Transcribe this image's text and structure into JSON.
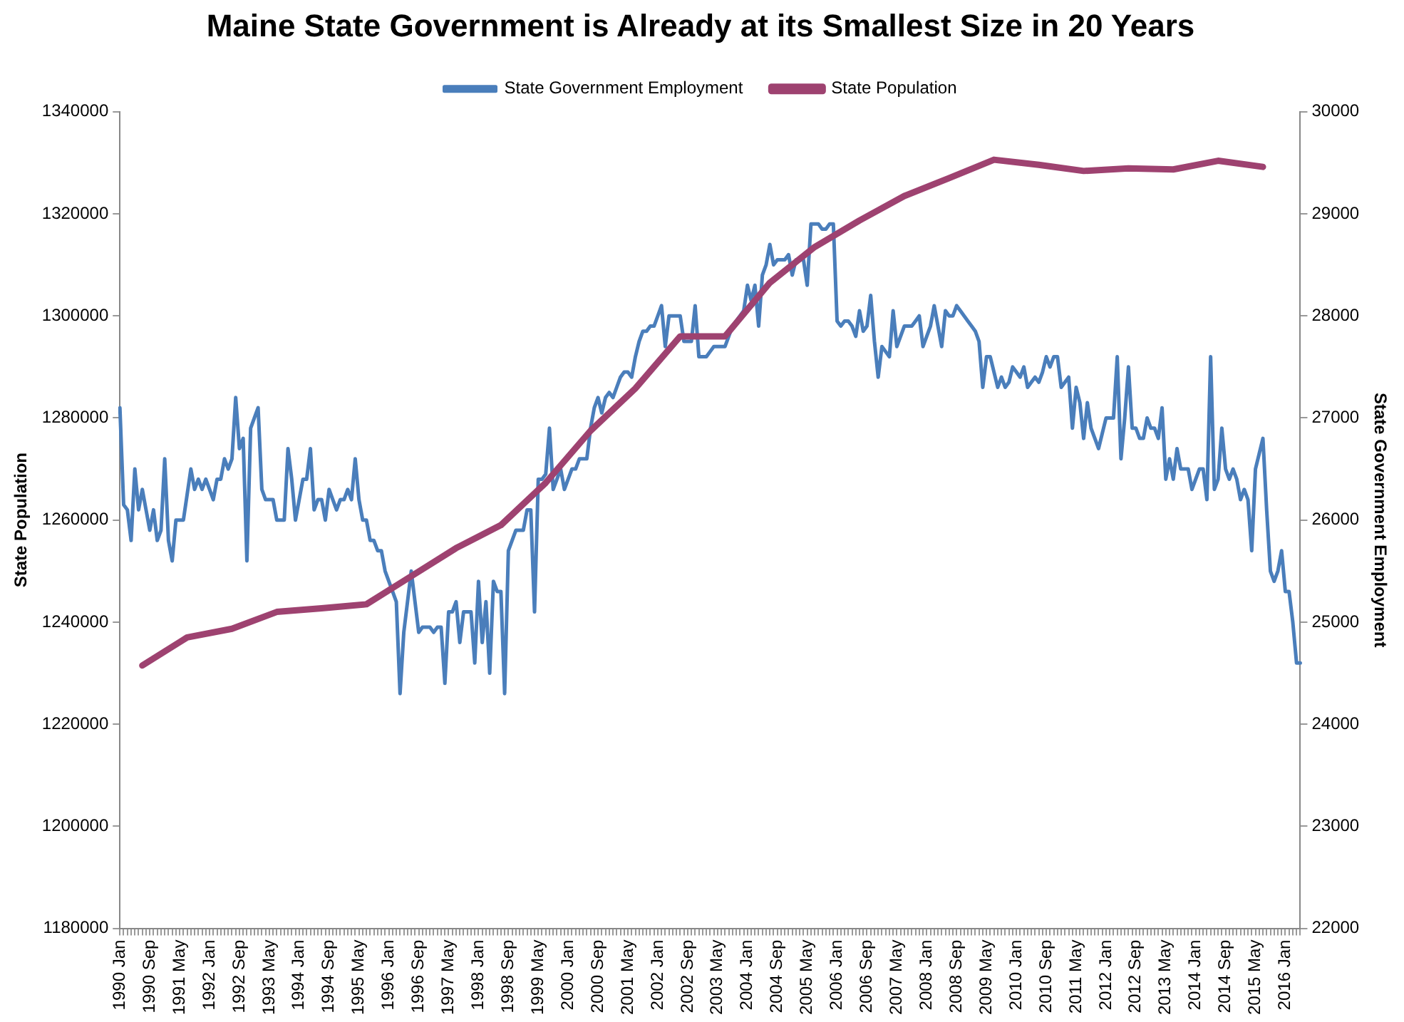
{
  "chart_data": {
    "type": "line",
    "title": "Maine State Government is Already at its Smallest Size in 20 Years",
    "ylabel": "State Population",
    "y2label": "State Government Employment",
    "categories": [
      "1990 Jan",
      null,
      null,
      null,
      null,
      null,
      null,
      null,
      "1990 Sep",
      null,
      null,
      null,
      null,
      null,
      null,
      null,
      "1991 May",
      null,
      null,
      null,
      null,
      null,
      null,
      null,
      "1992 Jan",
      null,
      null,
      null,
      null,
      null,
      null,
      null,
      "1992 Sep",
      null,
      null,
      null,
      null,
      null,
      null,
      null,
      "1993 May",
      null,
      null,
      null,
      null,
      null,
      null,
      null,
      "1994 Jan",
      null,
      null,
      null,
      null,
      null,
      null,
      null,
      "1994 Sep",
      null,
      null,
      null,
      null,
      null,
      null,
      null,
      "1995 May",
      null,
      null,
      null,
      null,
      null,
      null,
      null,
      "1996 Jan",
      null,
      null,
      null,
      null,
      null,
      null,
      null,
      "1996 Sep",
      null,
      null,
      null,
      null,
      null,
      null,
      null,
      "1997 May",
      null,
      null,
      null,
      null,
      null,
      null,
      null,
      "1998 Jan",
      null,
      null,
      null,
      null,
      null,
      null,
      null,
      "1998 Sep",
      null,
      null,
      null,
      null,
      null,
      null,
      null,
      "1999 May",
      null,
      null,
      null,
      null,
      null,
      null,
      null,
      "2000 Jan",
      null,
      null,
      null,
      null,
      null,
      null,
      null,
      "2000 Sep",
      null,
      null,
      null,
      null,
      null,
      null,
      null,
      "2001 May",
      null,
      null,
      null,
      null,
      null,
      null,
      null,
      "2002 Jan",
      null,
      null,
      null,
      null,
      null,
      null,
      null,
      "2002 Sep",
      null,
      null,
      null,
      null,
      null,
      null,
      null,
      "2003 May",
      null,
      null,
      null,
      null,
      null,
      null,
      null,
      "2004 Jan",
      null,
      null,
      null,
      null,
      null,
      null,
      null,
      "2004 Sep",
      null,
      null,
      null,
      null,
      null,
      null,
      null,
      "2005 May",
      null,
      null,
      null,
      null,
      null,
      null,
      null,
      "2006 Jan",
      null,
      null,
      null,
      null,
      null,
      null,
      null,
      "2006 Sep",
      null,
      null,
      null,
      null,
      null,
      null,
      null,
      "2007 May",
      null,
      null,
      null,
      null,
      null,
      null,
      null,
      "2008 Jan",
      null,
      null,
      null,
      null,
      null,
      null,
      null,
      "2008 Sep",
      null,
      null,
      null,
      null,
      null,
      null,
      null,
      "2009 May",
      null,
      null,
      null,
      null,
      null,
      null,
      null,
      "2010 Jan",
      null,
      null,
      null,
      null,
      null,
      null,
      null,
      "2010 Sep",
      null,
      null,
      null,
      null,
      null,
      null,
      null,
      "2011 May",
      null,
      null,
      null,
      null,
      null,
      null,
      null,
      "2012 Jan",
      null,
      null,
      null,
      null,
      null,
      null,
      null,
      "2012 Sep",
      null,
      null,
      null,
      null,
      null,
      null,
      null,
      "2013 May",
      null,
      null,
      null,
      null,
      null,
      null,
      null,
      "2014 Jan",
      null,
      null,
      null,
      null,
      null,
      null,
      null,
      "2014 Sep",
      null,
      null,
      null,
      null,
      null,
      null,
      null,
      "2015 May",
      null,
      null,
      null,
      null,
      null,
      null,
      null,
      "2016 Jan",
      null,
      null,
      null,
      null
    ],
    "series": [
      {
        "name": "State Government Employment",
        "color": "#4a7ebb",
        "axis": "y2",
        "values": [
          27100,
          26150,
          26100,
          25800,
          26500,
          26100,
          26300,
          26100,
          25900,
          26100,
          25800,
          25900,
          26600,
          25800,
          25600,
          26000,
          26000,
          26000,
          26250,
          26500,
          26300,
          26400,
          26300,
          26400,
          26300,
          26200,
          26400,
          26400,
          26600,
          26500,
          26600,
          27200,
          26700,
          26800,
          25600,
          26900,
          27000,
          27100,
          26300,
          26200,
          26200,
          26200,
          26000,
          26000,
          26000,
          26700,
          26400,
          26000,
          26200,
          26400,
          26400,
          26700,
          26100,
          26200,
          26200,
          26000,
          26300,
          26200,
          26100,
          26200,
          26200,
          26300,
          26200,
          26600,
          26200,
          26000,
          26000,
          25800,
          25800,
          25700,
          25700,
          25500,
          25400,
          25300,
          25200,
          24300,
          24900,
          25200,
          25500,
          25200,
          24900,
          24950,
          24950,
          24950,
          24900,
          24950,
          24950,
          24400,
          25100,
          25100,
          25200,
          24800,
          25100,
          25100,
          25100,
          24600,
          25400,
          24800,
          25200,
          24500,
          25400,
          25300,
          25300,
          24300,
          25700,
          25800,
          25900,
          25900,
          25900,
          26100,
          26100,
          25100,
          26400,
          26400,
          26450,
          26900,
          26300,
          26400,
          26500,
          26300,
          26400,
          26500,
          26500,
          26600,
          26600,
          26600,
          26900,
          27100,
          27200,
          27050,
          27200,
          27250,
          27200,
          27300,
          27400,
          27450,
          27450,
          27400,
          27600,
          27750,
          27850,
          27850,
          27900,
          27900,
          28000,
          28100,
          27700,
          28000,
          28000,
          28000,
          28000,
          27750,
          27750,
          27750,
          28100,
          27600,
          27600,
          27600,
          27650,
          27700,
          27700,
          27700,
          27700,
          27800,
          27900,
          27950,
          28000,
          28050,
          28300,
          28150,
          28300,
          27900,
          28400,
          28500,
          28700,
          28500,
          28550,
          28550,
          28550,
          28600,
          28400,
          28550,
          28550,
          28550,
          28300,
          28900,
          28900,
          28900,
          28850,
          28850,
          28900,
          28900,
          27950,
          27900,
          27950,
          27950,
          27900,
          27800,
          28050,
          27850,
          27900,
          28200,
          27750,
          27400,
          27700,
          27650,
          27600,
          28050,
          27700,
          27800,
          27900,
          27900,
          27900,
          27950,
          28000,
          27700,
          27800,
          27900,
          28100,
          27900,
          27700,
          28050,
          28000,
          28000,
          28100,
          28050,
          28000,
          27950,
          27900,
          27850,
          27750,
          27300,
          27600,
          27600,
          27450,
          27300,
          27400,
          27300,
          27350,
          27500,
          27450,
          27400,
          27500,
          27300,
          27350,
          27400,
          27350,
          27450,
          27600,
          27500,
          27600,
          27600,
          27300,
          27350,
          27400,
          26900,
          27300,
          27150,
          26800,
          27150,
          26900,
          26800,
          26700,
          26850,
          27000,
          27000,
          27000,
          27600,
          26600,
          27000,
          27500,
          26900,
          26900,
          26800,
          26800,
          27000,
          26900,
          26900,
          26800,
          27100,
          26400,
          26600,
          26400,
          26700,
          26500,
          26500,
          26500,
          26300,
          26400,
          26500,
          26500,
          26200,
          27600,
          26300,
          26400,
          26900,
          26500,
          26400,
          26500,
          26400,
          26200,
          26300,
          26200,
          25700,
          26500,
          26650,
          26800,
          26100,
          25500,
          25400,
          25500,
          25700,
          25300,
          25300,
          25000,
          24600,
          24600
        ]
      },
      {
        "name": "State Population",
        "color": "#9e4270",
        "axis": "y",
        "values": [
          null,
          null,
          null,
          null,
          null,
          null,
          1231500,
          null,
          null,
          null,
          null,
          null,
          null,
          null,
          null,
          null,
          null,
          null,
          1237000,
          null,
          null,
          null,
          null,
          null,
          null,
          null,
          null,
          null,
          null,
          null,
          1238700,
          null,
          null,
          null,
          null,
          null,
          null,
          null,
          null,
          null,
          null,
          null,
          1242000,
          null,
          null,
          null,
          null,
          null,
          null,
          null,
          null,
          null,
          null,
          null,
          1242700,
          null,
          null,
          null,
          null,
          null,
          null,
          null,
          null,
          null,
          null,
          null,
          1243500,
          null,
          null,
          null,
          null,
          null,
          null,
          null,
          null,
          null,
          null,
          null,
          1249000,
          null,
          null,
          null,
          null,
          null,
          null,
          null,
          null,
          null,
          null,
          null,
          1254500,
          null,
          null,
          null,
          null,
          null,
          null,
          null,
          null,
          null,
          null,
          null,
          1259000,
          null,
          null,
          null,
          null,
          null,
          null,
          null,
          null,
          null,
          null,
          null,
          1267300,
          null,
          null,
          null,
          null,
          null,
          null,
          null,
          null,
          null,
          null,
          null,
          1277500,
          null,
          null,
          null,
          null,
          null,
          null,
          null,
          null,
          null,
          null,
          null,
          1285800,
          null,
          null,
          null,
          null,
          null,
          null,
          null,
          null,
          null,
          null,
          null,
          1296000,
          null,
          null,
          null,
          null,
          null,
          null,
          null,
          null,
          null,
          null,
          null,
          1296000,
          null,
          null,
          null,
          null,
          null,
          null,
          null,
          null,
          null,
          null,
          null,
          1306500,
          null,
          null,
          null,
          null,
          null,
          null,
          null,
          null,
          null,
          null,
          null,
          1313500,
          null,
          null,
          null,
          null,
          null,
          null,
          null,
          null,
          null,
          null,
          null,
          1318700,
          null,
          null,
          null,
          null,
          null,
          null,
          null,
          null,
          null,
          null,
          null,
          1323500,
          null,
          null,
          null,
          null,
          null,
          null,
          null,
          null,
          null,
          null,
          null,
          1327000,
          null,
          null,
          null,
          null,
          null,
          null,
          null,
          null,
          null,
          null,
          null,
          1330600,
          null,
          null,
          null,
          null,
          null,
          null,
          null,
          null,
          null,
          null,
          null,
          1329600,
          null,
          null,
          null,
          null,
          null,
          null,
          null,
          null,
          null,
          null,
          null,
          1328400,
          null,
          null,
          null,
          null,
          null,
          null,
          null,
          null,
          null,
          null,
          null,
          1328900,
          null,
          null,
          null,
          null,
          null,
          null,
          null,
          null,
          null,
          null,
          null,
          1328700,
          null,
          null,
          null,
          null,
          null,
          null,
          null,
          null,
          null,
          null,
          null,
          1330400,
          null,
          null,
          null,
          null,
          null,
          null,
          null,
          null,
          null,
          null,
          null,
          1329200,
          null,
          null,
          null,
          null,
          null,
          null,
          null,
          null,
          null,
          null
        ]
      }
    ],
    "ylim": [
      1180000,
      1340000
    ],
    "yticks": [
      1180000,
      1200000,
      1220000,
      1240000,
      1260000,
      1280000,
      1300000,
      1320000,
      1340000
    ],
    "y2lim": [
      22000,
      30000
    ],
    "y2ticks": [
      22000,
      23000,
      24000,
      25000,
      26000,
      27000,
      28000,
      29000,
      30000
    ],
    "grid": false,
    "legend": "top",
    "marker": "none"
  }
}
